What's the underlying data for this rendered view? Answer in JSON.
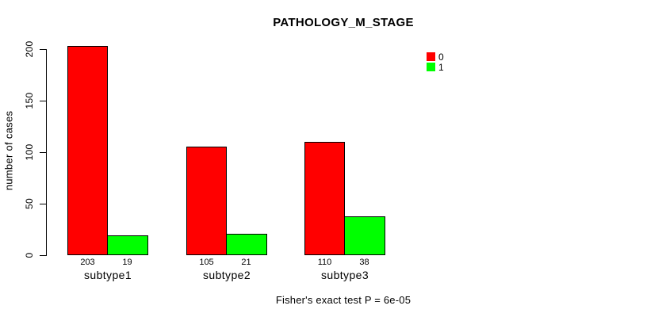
{
  "title": "PATHOLOGY_M_STAGE",
  "footer": "Fisher's exact test P = 6e-05",
  "chart_data": {
    "type": "bar",
    "title": "PATHOLOGY_M_STAGE",
    "xlabel": "",
    "ylabel": "number of cases",
    "categories": [
      "subtype1",
      "subtype2",
      "subtype3"
    ],
    "series": [
      {
        "name": "0",
        "color": "#ff0000",
        "values": [
          203,
          105,
          110
        ]
      },
      {
        "name": "1",
        "color": "#00ff00",
        "values": [
          19,
          21,
          38
        ]
      }
    ],
    "show_values_under_bars": true,
    "yticks": [
      0,
      50,
      100,
      150,
      200
    ],
    "ylim": [
      0,
      200
    ],
    "grid": false,
    "legend_position": "top-right",
    "annotation": "Fisher's exact test P = 6e-05",
    "colors": {
      "background": "#ffffff",
      "axis": "#000000",
      "text": "#000000",
      "bar_border": "#000000",
      "series_0": "#ff0000",
      "series_1": "#00ff00"
    }
  }
}
